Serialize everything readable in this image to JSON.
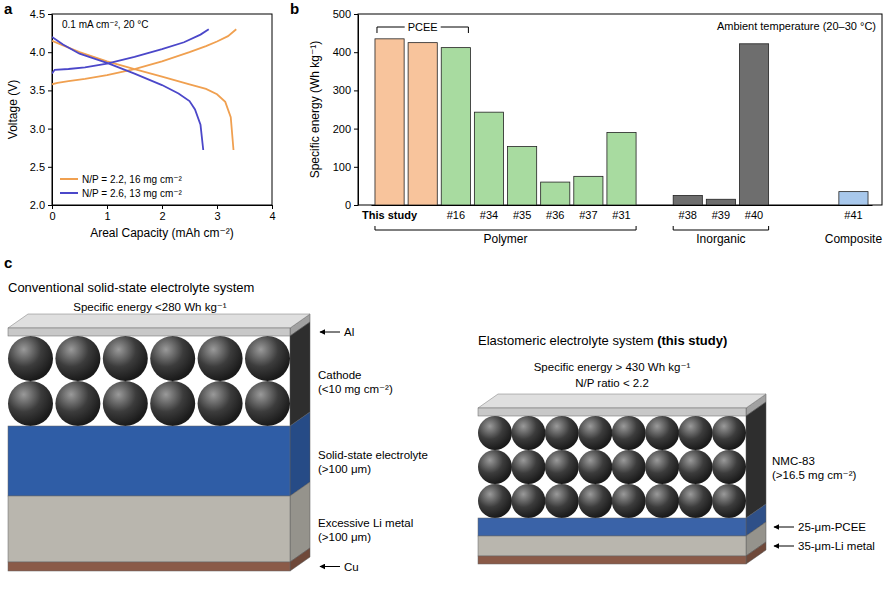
{
  "chart_data": [
    {
      "type": "line",
      "panel": "a",
      "annotation": "0.1 mA cm⁻², 20 °C",
      "xlabel": "Areal Capacity (mAh cm⁻²)",
      "ylabel": "Voltage (V)",
      "xlim": [
        0,
        4
      ],
      "ylim": [
        2,
        4.5
      ],
      "xticks": [
        0,
        1,
        2,
        3,
        4
      ],
      "yticks": [
        {
          "value": 2,
          "label": "2.0"
        },
        {
          "value": 2.5,
          "label": "2.5"
        },
        {
          "value": 3,
          "label": "3.0"
        },
        {
          "value": 3.5,
          "label": "3.5"
        },
        {
          "value": 4,
          "label": "4.0"
        },
        {
          "value": 4.5,
          "label": "4.5"
        }
      ],
      "legend": "lower left",
      "series": [
        {
          "name": "N/P = 2.2, 16 mg cm⁻²",
          "color": "#f0a050",
          "x": [
            0,
            0.1,
            0.3,
            0.6,
            1.0,
            1.5,
            2.0,
            2.5,
            2.8,
            3.0,
            3.2,
            3.35,
            null,
            0,
            0.2,
            0.5,
            1.0,
            1.5,
            2.0,
            2.5,
            2.8,
            3.0,
            3.15,
            3.25,
            3.3
          ],
          "values": [
            3.58,
            3.6,
            3.62,
            3.65,
            3.7,
            3.78,
            3.88,
            4.0,
            4.08,
            4.14,
            4.21,
            4.3,
            null,
            4.15,
            4.09,
            4.0,
            3.88,
            3.78,
            3.68,
            3.58,
            3.52,
            3.45,
            3.35,
            3.15,
            2.72
          ]
        },
        {
          "name": "N/P = 2.6, 13 mg cm⁻²",
          "color": "#4b47c9",
          "x": [
            0,
            0.05,
            0.3,
            0.6,
            1.0,
            1.5,
            2.0,
            2.4,
            2.7,
            2.85,
            null,
            0,
            0.2,
            0.5,
            1.0,
            1.5,
            2.0,
            2.3,
            2.5,
            2.6,
            2.7,
            2.75
          ],
          "values": [
            3.72,
            3.77,
            3.78,
            3.8,
            3.85,
            3.94,
            4.04,
            4.13,
            4.23,
            4.3,
            null,
            4.2,
            4.1,
            3.98,
            3.86,
            3.72,
            3.57,
            3.46,
            3.36,
            3.25,
            3.05,
            2.72
          ]
        }
      ]
    },
    {
      "type": "bar",
      "panel": "b",
      "ylabel": "Specific energy (Wh kg⁻¹)",
      "annotation": "Ambient temperature (20–30 °C)",
      "ylim": [
        0,
        500
      ],
      "yticks": [
        0,
        100,
        200,
        300,
        400,
        500
      ],
      "categories": [
        "This study",
        null,
        "#16",
        "#34",
        "#35",
        "#36",
        "#37",
        "#31",
        null,
        "#38",
        "#39",
        "#40",
        null,
        null,
        "#41"
      ],
      "values": [
        435,
        425,
        412,
        243,
        153,
        60,
        75,
        190,
        null,
        25,
        15,
        422,
        null,
        null,
        35
      ],
      "colors": [
        "#f8c49c",
        "#f8c49c",
        "#a8dba0",
        "#a8dba0",
        "#a8dba0",
        "#a8dba0",
        "#a8dba0",
        "#a8dba0",
        null,
        "#6e6e6e",
        "#6e6e6e",
        "#6e6e6e",
        null,
        null,
        "#a8c8ec"
      ],
      "bracket": {
        "label": "PCEE",
        "span": [
          "This study",
          "#16"
        ]
      },
      "groups": [
        {
          "label": "Polymer",
          "span": [
            "This study",
            "#31"
          ]
        },
        {
          "label": "Inorganic",
          "span": [
            "#38",
            "#40"
          ]
        },
        {
          "label": "Composite",
          "span": [
            "#41",
            "#41"
          ]
        }
      ]
    }
  ],
  "diagram": {
    "panel": "c",
    "conventional": {
      "title": "Conventional solid-state electrolyte system",
      "specific_energy": "Specific energy <280 Wh kg⁻¹",
      "labels": [
        {
          "text": "Al"
        },
        {
          "text": "Cathode",
          "detail": "(<10 mg cm⁻²)"
        },
        {
          "text": "Solid-state electrolyte",
          "detail": "(>100 μm)"
        },
        {
          "text": "Excessive Li metal",
          "detail": "(>100 μm)"
        },
        {
          "text": "Cu"
        }
      ]
    },
    "elastomeric": {
      "title": "Elastomeric electrolyte system",
      "title_emphasis": "(this study)",
      "specific_energy": "Specific energy > 430 Wh kg⁻¹",
      "np_ratio": "N/P ratio < 2.2",
      "labels": [
        {
          "text": "NMC-83",
          "detail": "(>16.5 mg cm⁻²)"
        },
        {
          "text": "25-μm-PCEE"
        },
        {
          "text": "35-μm-Li metal"
        }
      ]
    }
  }
}
